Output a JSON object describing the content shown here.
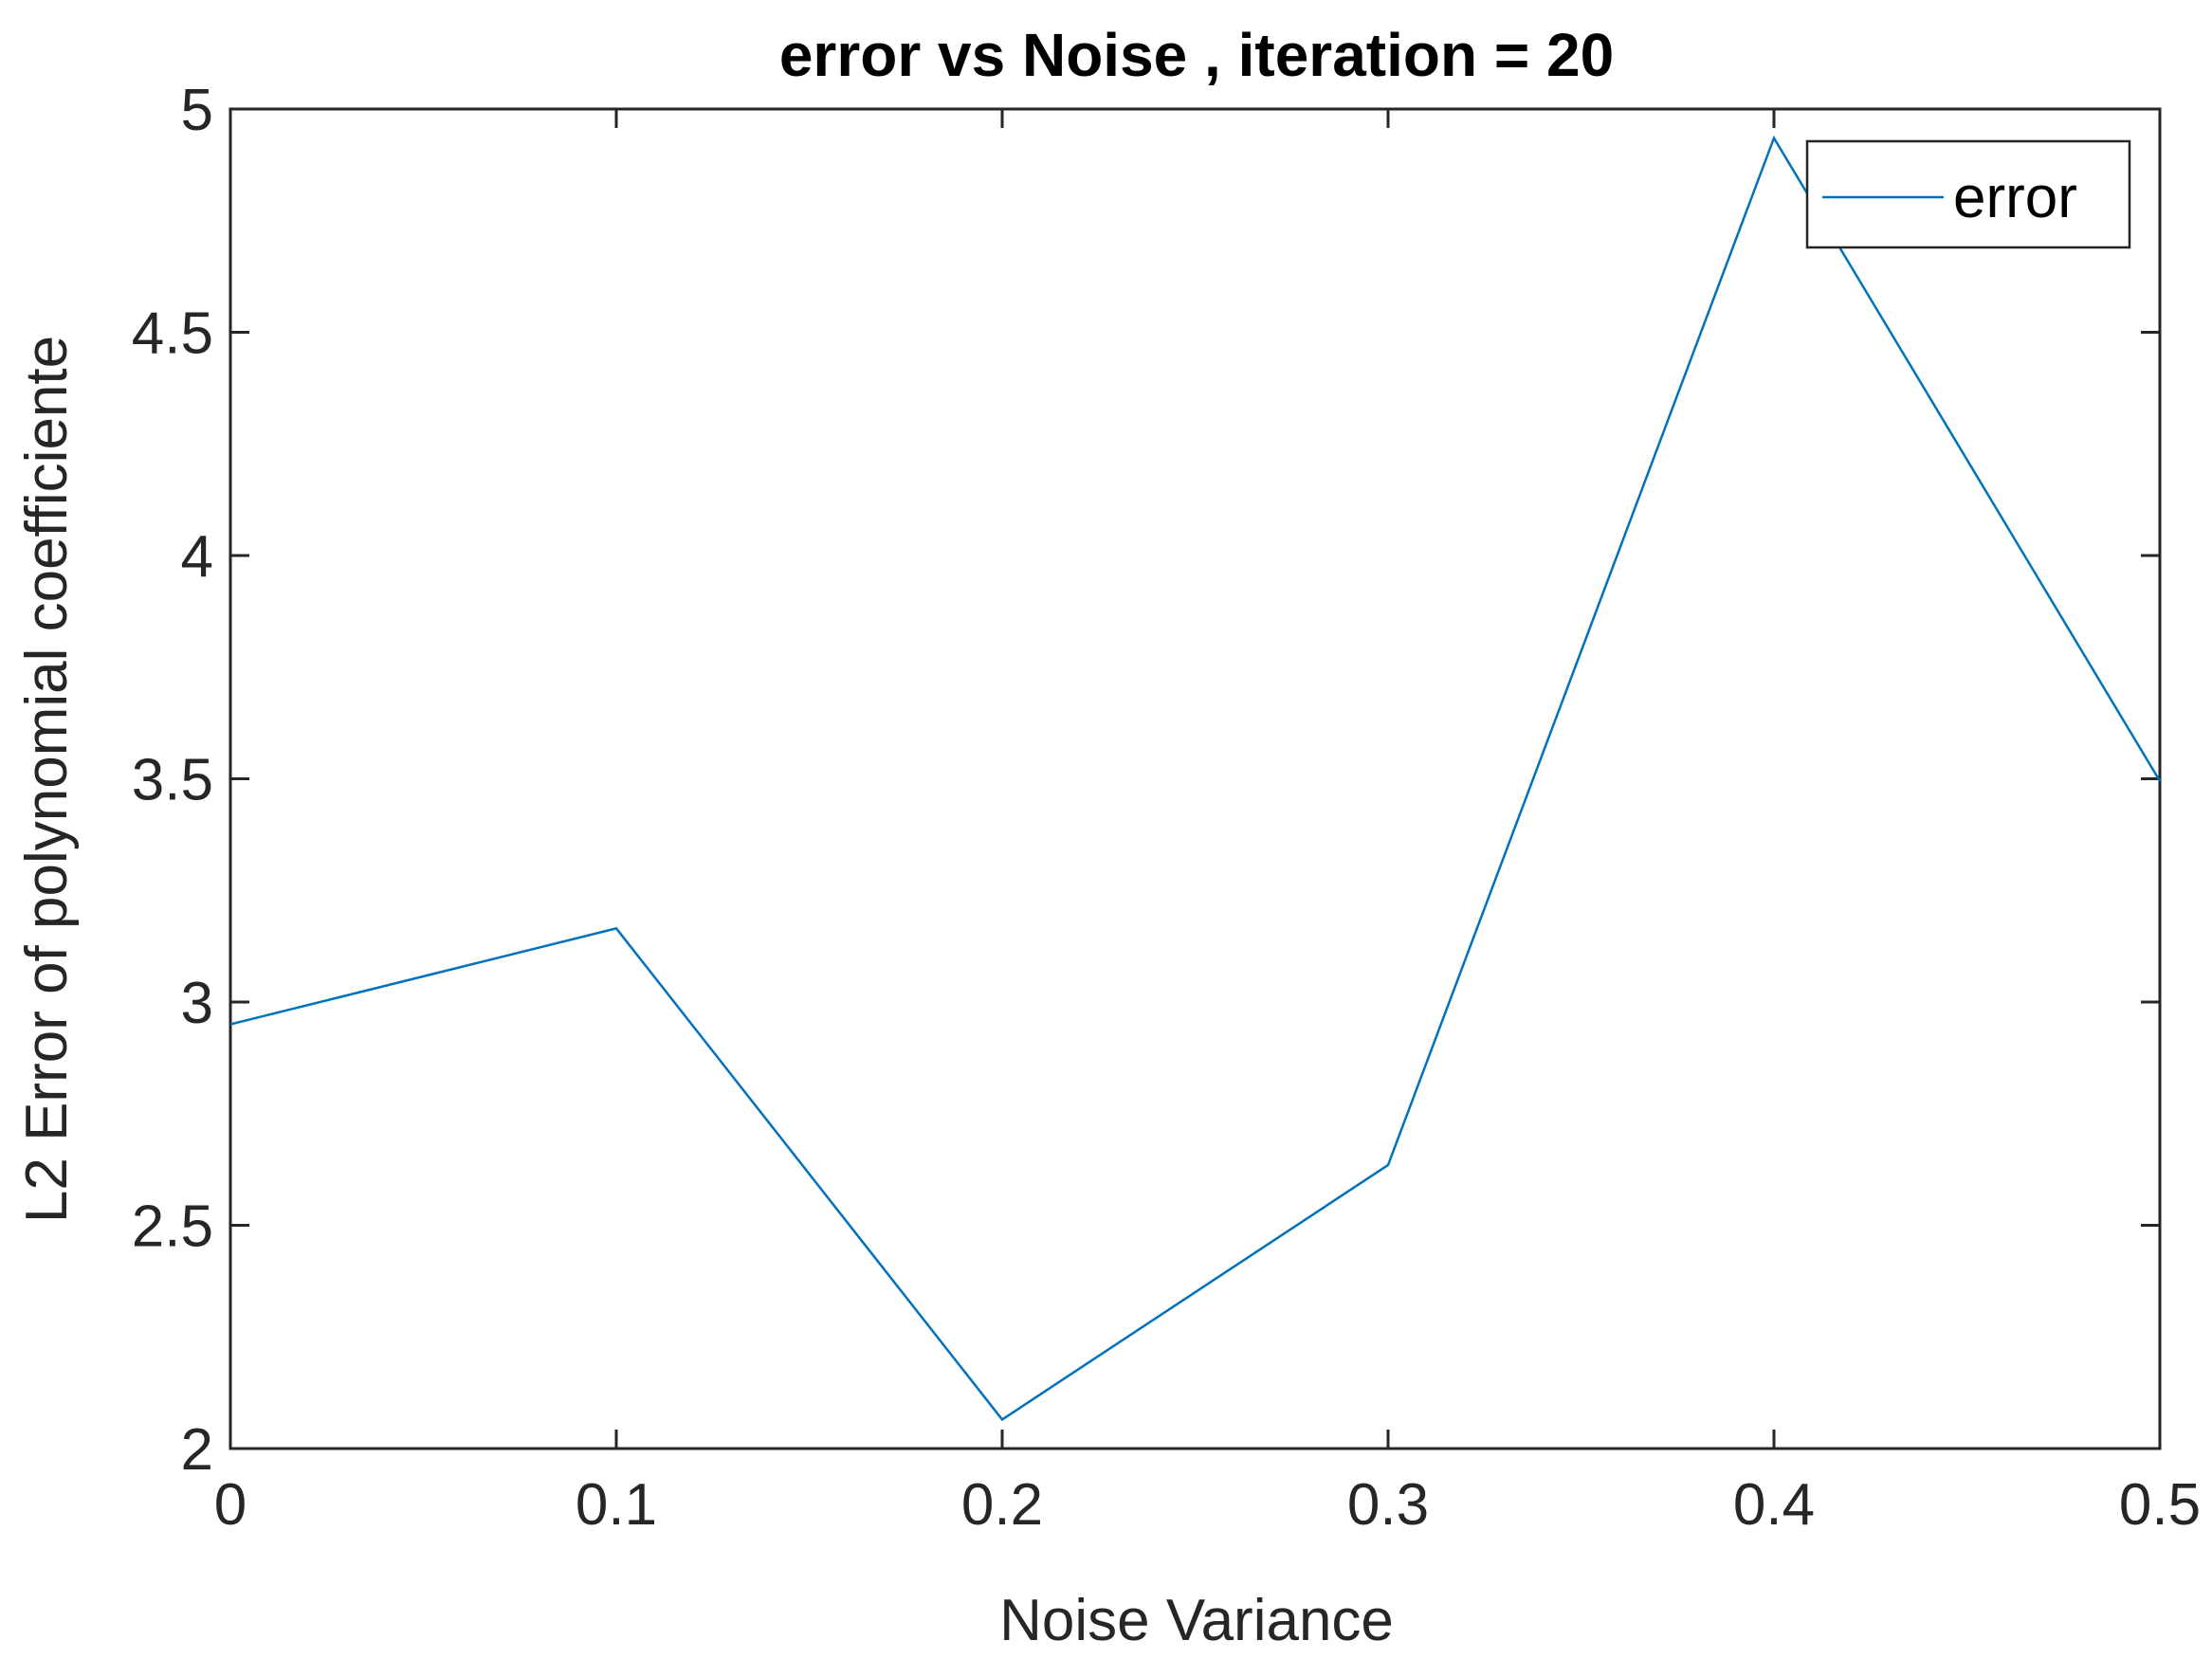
{
  "chart_data": {
    "type": "line",
    "title": "error vs Noise , iteration = 20",
    "xlabel": "Noise Variance",
    "ylabel": "L2 Error of polynomial coefficiente",
    "xlim": [
      0,
      0.5
    ],
    "ylim": [
      2,
      5
    ],
    "xticks": [
      0,
      0.1,
      0.2,
      0.3,
      0.4,
      0.5
    ],
    "xtick_labels": [
      "0",
      "0.1",
      "0.2",
      "0.3",
      "0.4",
      "0.5"
    ],
    "yticks": [
      2,
      2.5,
      3,
      3.5,
      4,
      4.5,
      5
    ],
    "ytick_labels": [
      "2",
      "2.5",
      "3",
      "3.5",
      "4",
      "4.5",
      "5"
    ],
    "grid": false,
    "legend_position": "top-right",
    "series": [
      {
        "name": "error",
        "color": "#0072BD",
        "x": [
          0,
          0.1,
          0.2,
          0.3,
          0.4,
          0.5
        ],
        "y": [
          2.95,
          3.165,
          2.065,
          2.635,
          4.935,
          3.495
        ]
      }
    ]
  }
}
